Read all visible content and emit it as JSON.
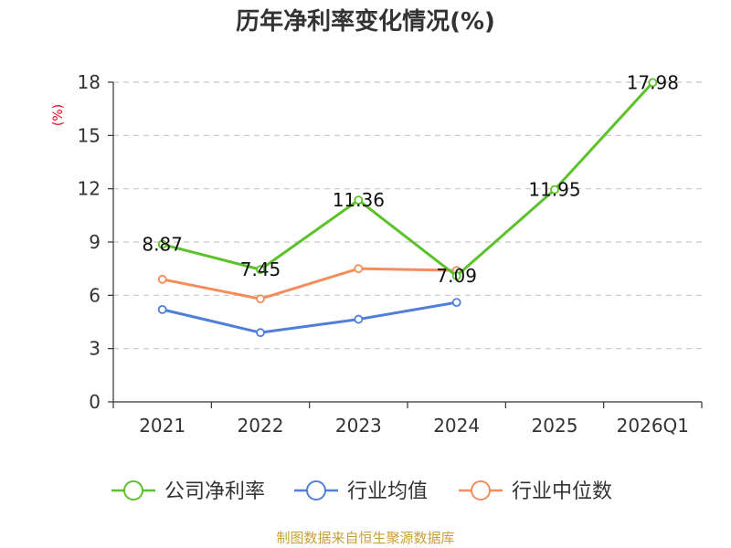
{
  "chart_data": {
    "type": "line",
    "title": "历年净利率变化情况(%)",
    "ylabel": "(%)",
    "ylim": [
      0,
      18
    ],
    "yticks": [
      0,
      3,
      6,
      9,
      12,
      15,
      18
    ],
    "categories": [
      "2021",
      "2022",
      "2023",
      "2024",
      "2025",
      "2026Q1"
    ],
    "grid": true,
    "legend_position": "bottom",
    "series": [
      {
        "name": "公司净利率",
        "color": "#5bc22a",
        "values": [
          8.87,
          7.45,
          11.36,
          7.09,
          11.95,
          17.98
        ],
        "labels": [
          "8.87",
          "7.45",
          "11.36",
          "7.09",
          "11.95",
          "17.98"
        ]
      },
      {
        "name": "行业均值",
        "color": "#4f7fd9",
        "values": [
          5.2,
          3.9,
          4.65,
          5.6,
          null,
          null
        ]
      },
      {
        "name": "行业中位数",
        "color": "#f58d5b",
        "values": [
          6.9,
          5.8,
          7.5,
          7.4,
          null,
          null
        ]
      }
    ],
    "source": "制图数据来自恒生聚源数据库"
  }
}
